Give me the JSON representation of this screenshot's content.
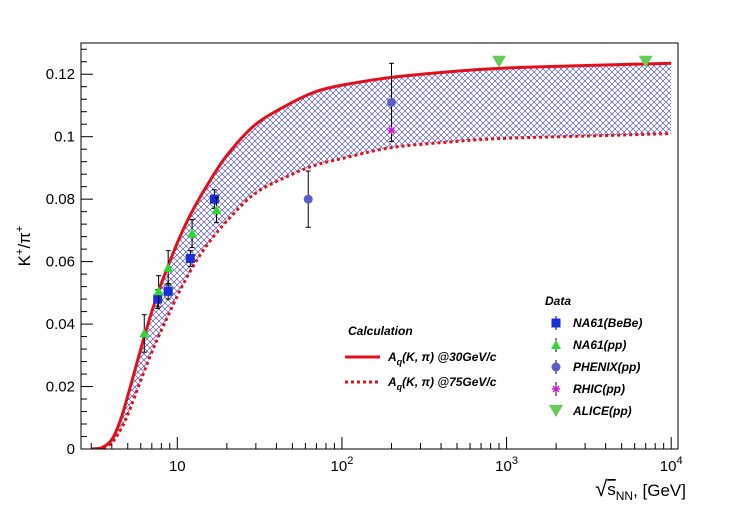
{
  "chart_data": {
    "type": "scatter",
    "title": "",
    "xlabel": "√s_NN, [GeV]",
    "xlabel_parts": {
      "root": "√",
      "s": "s",
      "sub": "NN",
      "unit": ", [GeV]"
    },
    "ylabel": "K⁺/π⁺",
    "ylabel_parts": {
      "k": "K",
      "k_sup": "+",
      "slash": "/π",
      "pi_sup": "+"
    },
    "x_scale": "log",
    "xlim": [
      2.6,
      11000
    ],
    "ylim": [
      0,
      0.13
    ],
    "x_ticks": [
      {
        "value": 10,
        "base": "10",
        "exp": ""
      },
      {
        "value": 100,
        "base": "10",
        "exp": "2"
      },
      {
        "value": 1000,
        "base": "10",
        "exp": "3"
      },
      {
        "value": 10000,
        "base": "10",
        "exp": "4"
      }
    ],
    "y_ticks": [
      {
        "value": 0,
        "label": "0"
      },
      {
        "value": 0.02,
        "label": "0.02"
      },
      {
        "value": 0.04,
        "label": "0.04"
      },
      {
        "value": 0.06,
        "label": "0.06"
      },
      {
        "value": 0.08,
        "label": "0.08"
      },
      {
        "value": 0.1,
        "label": "0.1"
      },
      {
        "value": 0.12,
        "label": "0.12"
      }
    ],
    "curves": [
      {
        "name": "A_q(K, π) @30GeV/c",
        "style": "solid",
        "color": "#e3101b",
        "points": [
          [
            3.0,
            0.0
          ],
          [
            3.5,
            0.0005
          ],
          [
            4.0,
            0.003
          ],
          [
            4.5,
            0.009
          ],
          [
            5.0,
            0.017
          ],
          [
            6.0,
            0.032
          ],
          [
            7.0,
            0.044
          ],
          [
            8.0,
            0.053
          ],
          [
            10.0,
            0.066
          ],
          [
            12.0,
            0.075
          ],
          [
            15.0,
            0.084
          ],
          [
            20.0,
            0.094
          ],
          [
            30.0,
            0.104
          ],
          [
            50.0,
            0.111
          ],
          [
            70.0,
            0.1145
          ],
          [
            100.0,
            0.1165
          ],
          [
            200.0,
            0.119
          ],
          [
            500.0,
            0.121
          ],
          [
            1000.0,
            0.122
          ],
          [
            3000.0,
            0.1228
          ],
          [
            10000.0,
            0.1235
          ]
        ]
      },
      {
        "name": "A_q(K, π) @75GeV/c",
        "style": "dotted",
        "color": "#e3101b",
        "points": [
          [
            3.0,
            0.0
          ],
          [
            3.5,
            0.0003
          ],
          [
            4.0,
            0.002
          ],
          [
            4.5,
            0.006
          ],
          [
            5.0,
            0.011
          ],
          [
            6.0,
            0.022
          ],
          [
            7.0,
            0.031
          ],
          [
            8.0,
            0.038
          ],
          [
            10.0,
            0.049
          ],
          [
            12.0,
            0.057
          ],
          [
            15.0,
            0.065
          ],
          [
            20.0,
            0.073
          ],
          [
            30.0,
            0.082
          ],
          [
            50.0,
            0.088
          ],
          [
            70.0,
            0.091
          ],
          [
            100.0,
            0.093
          ],
          [
            200.0,
            0.0965
          ],
          [
            500.0,
            0.0985
          ],
          [
            1000.0,
            0.0995
          ],
          [
            3000.0,
            0.1002
          ],
          [
            10000.0,
            0.101
          ]
        ]
      }
    ],
    "band": {
      "between": [
        "A_q(K, π) @30GeV/c",
        "A_q(K, π) @75GeV/c"
      ],
      "fill": "crosshatch",
      "color": "#3b3bb0"
    },
    "series": [
      {
        "name": "NA61(BeBe)",
        "marker": "square",
        "color": "#1a2fd8",
        "points": [
          {
            "x": 7.6,
            "y": 0.048,
            "err": 0.003
          },
          {
            "x": 8.8,
            "y": 0.0505,
            "err": 0.0025
          },
          {
            "x": 12.0,
            "y": 0.061,
            "err": 0.0025
          },
          {
            "x": 16.8,
            "y": 0.08,
            "err": 0.003
          }
        ]
      },
      {
        "name": "NA61(pp)",
        "marker": "triangle-up",
        "color": "#2ed82e",
        "points": [
          {
            "x": 6.3,
            "y": 0.037,
            "err": 0.006
          },
          {
            "x": 7.7,
            "y": 0.0505,
            "err": 0.005
          },
          {
            "x": 8.8,
            "y": 0.058,
            "err": 0.0055
          },
          {
            "x": 12.3,
            "y": 0.069,
            "err": 0.0045
          },
          {
            "x": 17.3,
            "y": 0.0765,
            "err": 0.004
          }
        ]
      },
      {
        "name": "PHENIX(pp)",
        "marker": "circle",
        "color": "#5c5cc8",
        "points": [
          {
            "x": 62.4,
            "y": 0.08,
            "err": 0.009
          },
          {
            "x": 200.0,
            "y": 0.111,
            "err": 0.0125
          }
        ]
      },
      {
        "name": "RHIC(pp)",
        "marker": "star",
        "color": "#cc22cc",
        "points": [
          {
            "x": 200.0,
            "y": 0.102,
            "err": 0.0
          }
        ]
      },
      {
        "name": "ALICE(pp)",
        "marker": "triangle-down",
        "color": "#66cc55",
        "points": [
          {
            "x": 900.0,
            "y": 0.124,
            "err": 0.0
          },
          {
            "x": 7000.0,
            "y": 0.124,
            "err": 0.0
          }
        ]
      }
    ],
    "legend_calc": {
      "title": "Calculation",
      "entries": [
        {
          "text_a": "A",
          "text_q": "q",
          "text_rest": "(K, π) @30GeV/c",
          "style": "solid"
        },
        {
          "text_a": "A",
          "text_q": "q",
          "text_rest": "(K, π) @75GeV/c",
          "style": "dotted"
        }
      ]
    },
    "legend_data": {
      "title": "Data",
      "entries": [
        "NA61(BeBe)",
        "NA61(pp)",
        "PHENIX(pp)",
        "RHIC(pp)",
        "ALICE(pp)"
      ]
    }
  }
}
